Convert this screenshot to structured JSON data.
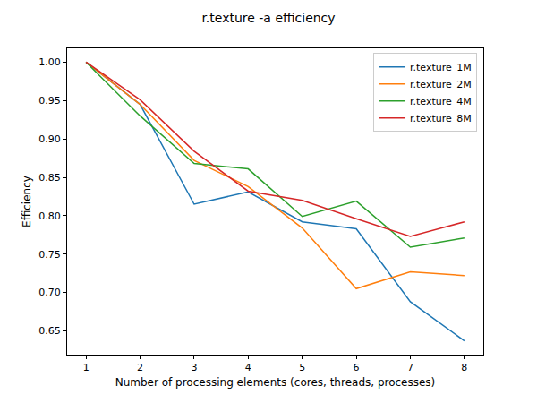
{
  "chart_data": {
    "type": "line",
    "title": "r.texture -a efficiency",
    "x_label": "Number of processing elements (cores, threads, processes)",
    "y_label": "Efficiency",
    "x": [
      1,
      2,
      3,
      4,
      5,
      6,
      7,
      8
    ],
    "series": [
      {
        "name": "r.texture_1M",
        "color": "#1f77b4",
        "values": [
          1.0,
          0.945,
          0.815,
          0.831,
          0.792,
          0.783,
          0.688,
          0.637
        ]
      },
      {
        "name": "r.texture_2M",
        "color": "#ff7f0e",
        "values": [
          1.0,
          0.945,
          0.872,
          0.838,
          0.784,
          0.705,
          0.727,
          0.722
        ]
      },
      {
        "name": "r.texture_4M",
        "color": "#2ca02c",
        "values": [
          1.0,
          0.93,
          0.868,
          0.861,
          0.799,
          0.819,
          0.759,
          0.771
        ]
      },
      {
        "name": "r.texture_8M",
        "color": "#d62728",
        "values": [
          1.0,
          0.951,
          0.884,
          0.832,
          0.82,
          0.796,
          0.773,
          0.792
        ]
      }
    ],
    "xlim": [
      0.65,
      8.35
    ],
    "ylim": [
      0.619,
      1.018
    ],
    "xticks": [
      1,
      2,
      3,
      4,
      5,
      6,
      7,
      8
    ],
    "yticks": [
      0.65,
      {
        "value": 0.7,
        "label": "0.70"
      },
      0.75,
      {
        "value": 0.8,
        "label": "0.80"
      },
      0.85,
      {
        "value": 0.9,
        "label": "0.90"
      },
      0.95,
      {
        "value": 1.0,
        "label": "1.00"
      }
    ],
    "grid": false,
    "legend": "upper right"
  }
}
